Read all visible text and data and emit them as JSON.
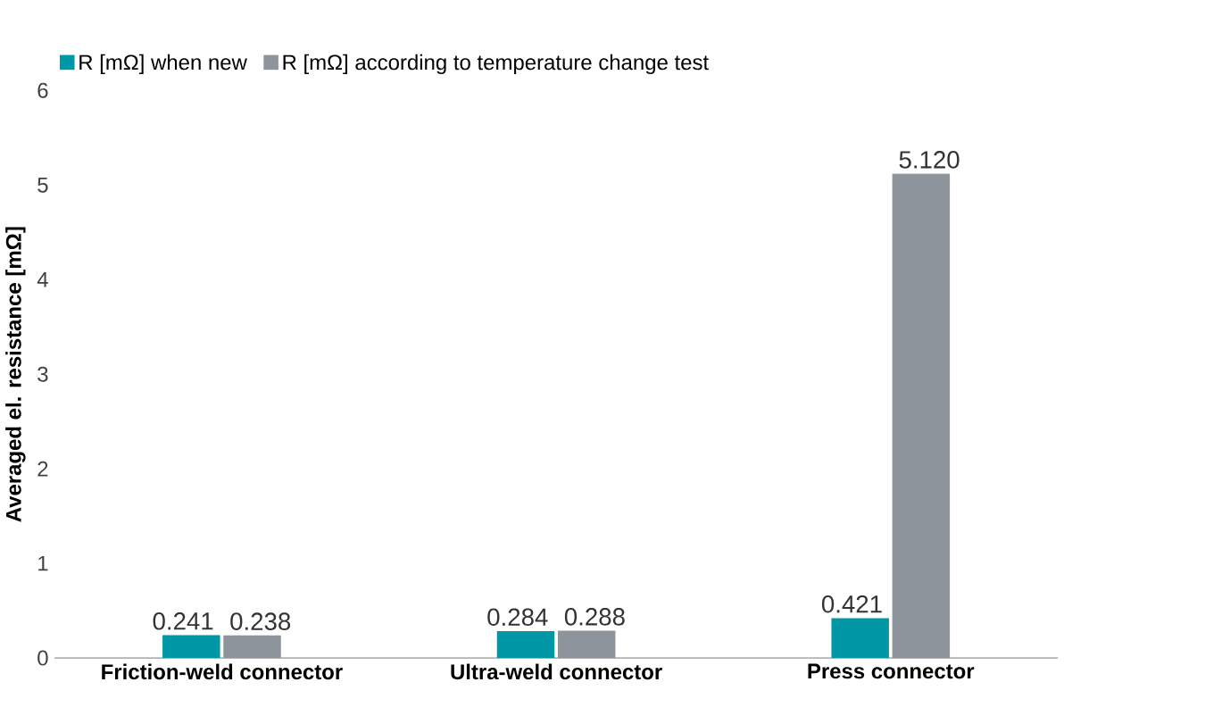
{
  "chart_data": {
    "type": "bar",
    "ylabel": "Averaged el. resistance [mΩ]",
    "categories": [
      "Friction-weld connector",
      "Ultra-weld connector",
      "Press connector"
    ],
    "series": [
      {
        "name": "R [mΩ] when new",
        "color": "#0097a7",
        "values": [
          0.241,
          0.284,
          0.421
        ],
        "value_labels": [
          "0.241",
          "0.284",
          "0.421"
        ]
      },
      {
        "name": "R [mΩ] according to temperature change test",
        "color": "#8d949b",
        "values": [
          0.238,
          0.288,
          5.12
        ],
        "value_labels": [
          "0.238",
          "0.288",
          "5.120"
        ]
      }
    ],
    "ylim": [
      0,
      6
    ],
    "yticks": [
      0,
      1,
      2,
      3,
      4,
      5,
      6
    ],
    "grid": false,
    "legend": "top left"
  }
}
